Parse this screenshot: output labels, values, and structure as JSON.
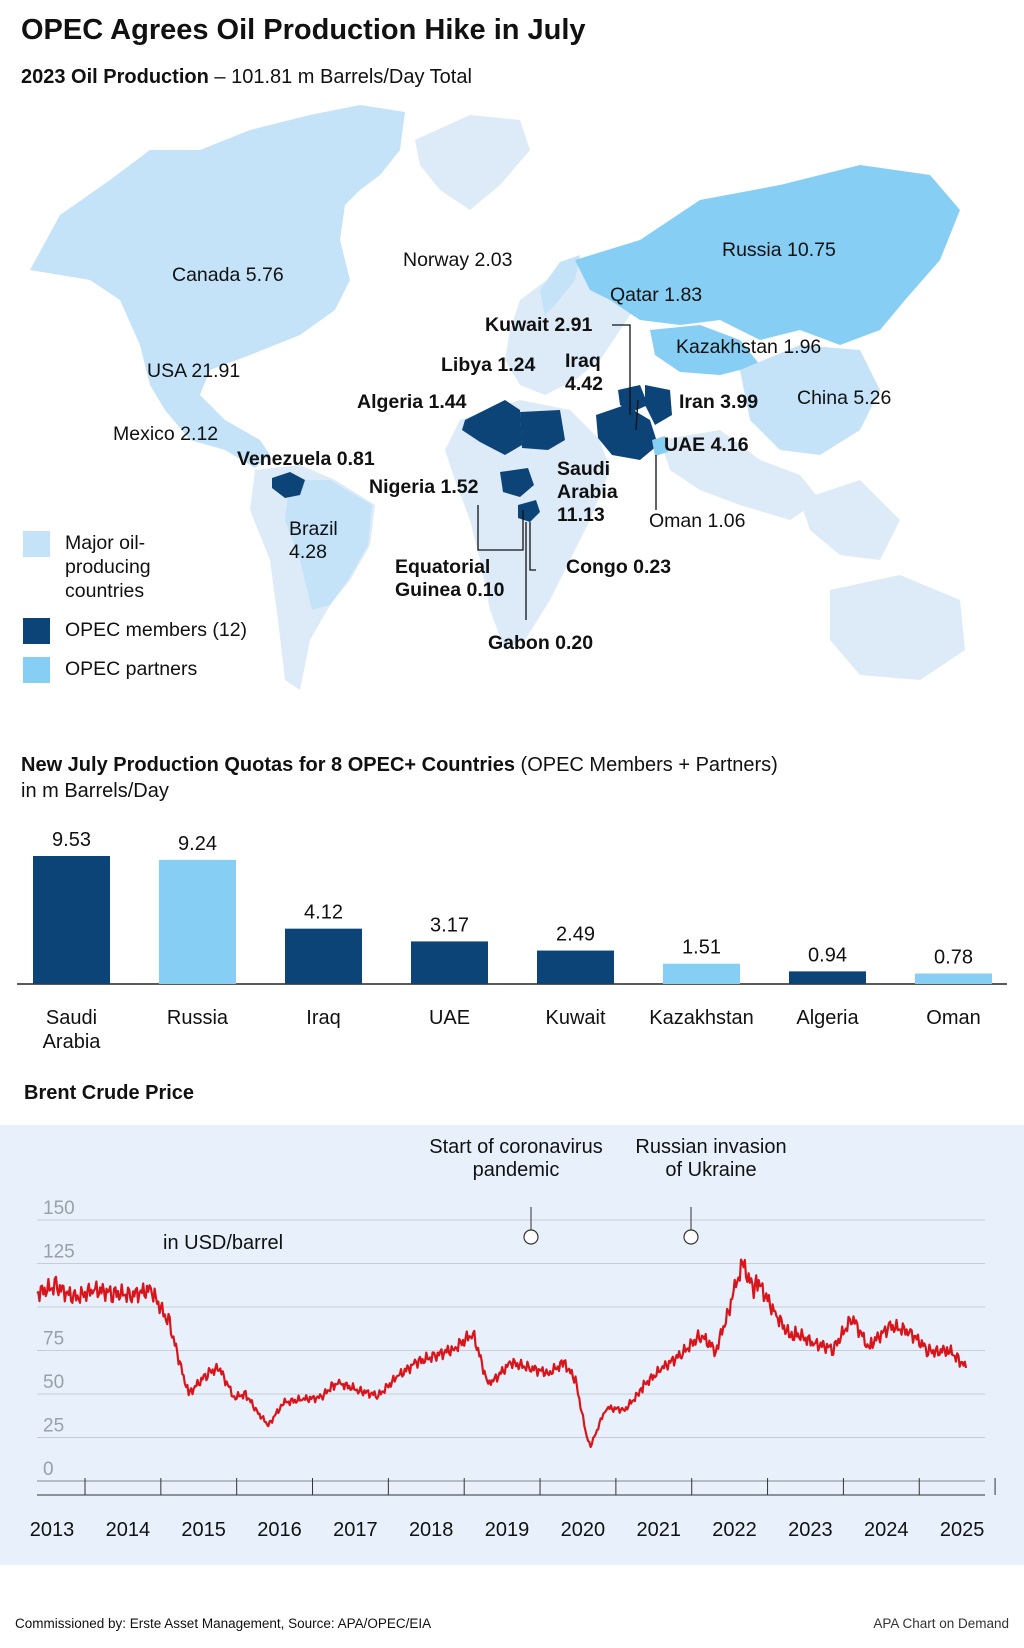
{
  "title": "OPEC Agrees Oil Production Hike in July",
  "map": {
    "subtitle_bold": "2023 Oil Production",
    "subtitle_rest": "– 101.81 m Barrels/Day Total",
    "labels": {
      "canada": "Canada 5.76",
      "usa": "USA 21.91",
      "mexico": "Mexico 2.12",
      "brazil": "Brazil 4.28",
      "norway": "Norway 2.03",
      "russia": "Russia 10.75",
      "qatar": "Qatar 1.83",
      "kazakhstan": "Kazakhstan 1.96",
      "china": "China 5.26",
      "oman": "Oman 1.06",
      "venezuela": "Venezuela 0.81",
      "nigeria": "Nigeria 1.52",
      "algeria": "Algeria 1.44",
      "libya": "Libya 1.24",
      "kuwait": "Kuwait 2.91",
      "iraq": "Iraq 4.42",
      "iran": "Iran 3.99",
      "uae": "UAE 4.16",
      "saudi": "Saudi Arabia 11.13",
      "eq_guinea": "Equatorial Guinea 0.10",
      "congo": "Congo 0.23",
      "gabon": "Gabon 0.20"
    },
    "legend": [
      {
        "label": "Major oil-producing countries",
        "color": "#c4e3f8"
      },
      {
        "label": "OPEC members (12)",
        "color": "#0d4478"
      },
      {
        "label": "OPEC partners",
        "color": "#86cef3"
      }
    ]
  },
  "bars": {
    "title_bold": "New July Production Quotas for 8 OPEC+ Countries",
    "title_rest": "(OPEC Members + Partners)",
    "unit": "in m Barrels/Day"
  },
  "brent": {
    "title": "Brent Crude Price",
    "unit_label": "in USD/barrel",
    "annotations": [
      "Start of coronavirus pandemic",
      "Russian invasion of Ukraine"
    ]
  },
  "footer": {
    "left": "Commissioned by: Erste Asset Management, Source: APA/OPEC/EIA",
    "right": "APA Chart on Demand"
  },
  "colors": {
    "opec_member": "#0d4478",
    "opec_partner": "#86cef3",
    "major_producer": "#c4e3f8",
    "land": "#dcebf7",
    "line": "#d9151c"
  },
  "chart_data": [
    {
      "type": "bar",
      "title": "New July Production Quotas for 8 OPEC+ Countries (OPEC Members + Partners)",
      "ylabel": "in m Barrels/Day",
      "categories": [
        "Saudi Arabia",
        "Russia",
        "Iraq",
        "UAE",
        "Kuwait",
        "Kazakhstan",
        "Algeria",
        "Oman"
      ],
      "values": [
        9.53,
        9.24,
        4.12,
        3.17,
        2.49,
        1.51,
        0.94,
        0.78
      ],
      "group": [
        "OPEC members",
        "OPEC partners",
        "OPEC members",
        "OPEC members",
        "OPEC members",
        "OPEC partners",
        "OPEC members",
        "OPEC partners"
      ]
    },
    {
      "type": "line",
      "title": "Brent Crude Price",
      "ylabel": "in USD/barrel",
      "ylim": [
        0,
        150
      ],
      "yticks": [
        0,
        25,
        50,
        75,
        125,
        150
      ],
      "xticks": [
        "2013",
        "2014",
        "2015",
        "2016",
        "2017",
        "2018",
        "2019",
        "2020",
        "2021",
        "2022",
        "2023",
        "2024",
        "2025"
      ],
      "grid": true,
      "series": [
        {
          "x": [
            2013.0,
            2013.25,
            2013.5,
            2013.75,
            2014.0,
            2014.25,
            2014.5,
            2014.75,
            2014.9,
            2015.0,
            2015.25,
            2015.4,
            2015.6,
            2015.75,
            2015.9,
            2016.05,
            2016.25,
            2016.5,
            2016.75,
            2016.9,
            2017.0,
            2017.25,
            2017.5,
            2017.75,
            2018.0,
            2018.25,
            2018.5,
            2018.75,
            2018.95,
            2019.0,
            2019.25,
            2019.5,
            2019.75,
            2019.95,
            2020.1,
            2020.25,
            2020.3,
            2020.5,
            2020.75,
            2020.95,
            2021.0,
            2021.25,
            2021.5,
            2021.75,
            2021.95,
            2022.1,
            2022.2,
            2022.3,
            2022.45,
            2022.5,
            2022.75,
            2022.95,
            2023.0,
            2023.25,
            2023.5,
            2023.75,
            2023.95,
            2024.0,
            2024.25,
            2024.5,
            2024.75,
            2024.9,
            2025.0,
            2025.15,
            2025.25
          ],
          "values": [
            108,
            112,
            105,
            110,
            108,
            107,
            110,
            90,
            65,
            50,
            62,
            65,
            48,
            50,
            40,
            32,
            45,
            47,
            48,
            55,
            56,
            52,
            49,
            60,
            68,
            72,
            76,
            85,
            55,
            57,
            68,
            65,
            62,
            68,
            58,
            25,
            20,
            42,
            41,
            51,
            55,
            65,
            73,
            84,
            75,
            95,
            110,
            125,
            110,
            115,
            95,
            82,
            85,
            79,
            76,
            94,
            78,
            79,
            89,
            86,
            75,
            74,
            76,
            70,
            65
          ]
        }
      ],
      "annotations": [
        {
          "x": 2020.2,
          "text": "Start of coronavirus pandemic"
        },
        {
          "x": 2022.2,
          "text": "Russian invasion of Ukraine"
        }
      ]
    }
  ]
}
